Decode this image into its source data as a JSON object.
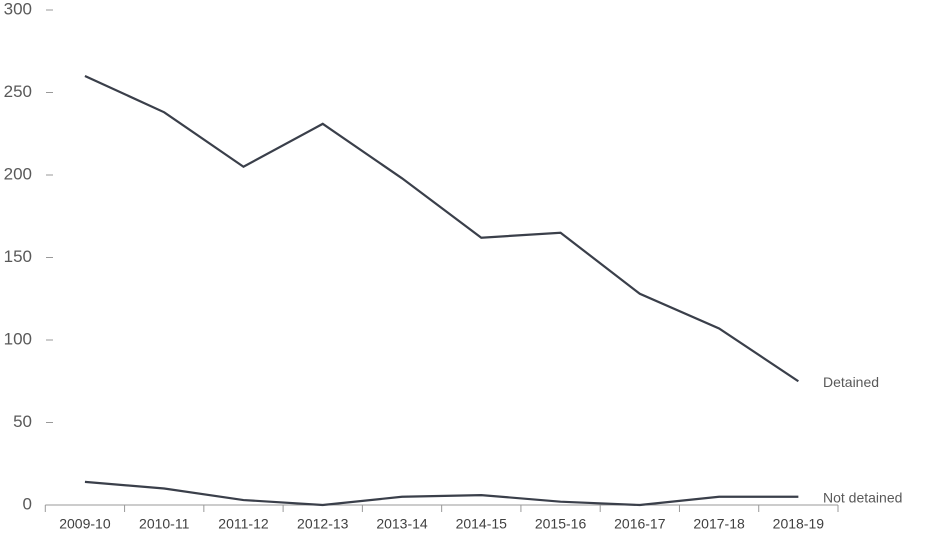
{
  "chart_data": {
    "type": "line",
    "categories": [
      "2009-10",
      "2010-11",
      "2011-12",
      "2012-13",
      "2013-14",
      "2014-15",
      "2015-16",
      "2016-17",
      "2017-18",
      "2018-19"
    ],
    "series": [
      {
        "name": "Detained",
        "color": "#3a3f4a",
        "values": [
          260,
          238,
          205,
          231,
          198,
          162,
          165,
          128,
          107,
          75
        ]
      },
      {
        "name": "Not detained",
        "color": "#3a3f4a",
        "values": [
          14,
          10,
          3,
          0,
          5,
          6,
          2,
          0,
          5,
          5
        ]
      }
    ],
    "ylim": [
      0,
      300
    ],
    "yticks": [
      0,
      50,
      100,
      150,
      200,
      250,
      300
    ],
    "grid": false
  }
}
